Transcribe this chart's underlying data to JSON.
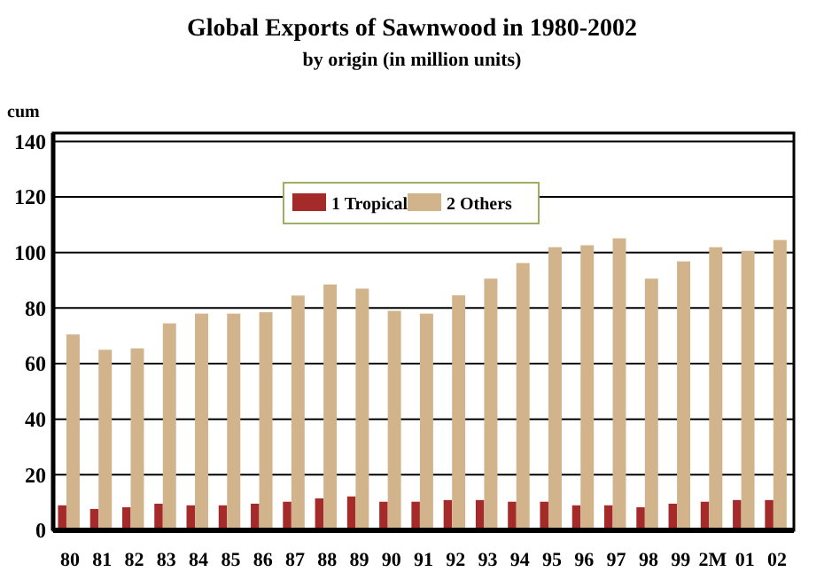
{
  "chart_data": {
    "type": "bar",
    "title": "Global Exports of Sawnwood in 1980-2002",
    "subtitle": "by origin (in million units)",
    "ylabel": "cum",
    "categories": [
      "80",
      "81",
      "82",
      "83",
      "84",
      "85",
      "86",
      "87",
      "88",
      "89",
      "90",
      "91",
      "92",
      "93",
      "94",
      "95",
      "96",
      "97",
      "98",
      "99",
      "2M",
      "01",
      "02"
    ],
    "series": [
      {
        "name": "1 Tropical",
        "color": "#a52a2a",
        "values": [
          9,
          7.7,
          8.3,
          9.6,
          9,
          9,
          9.6,
          10.3,
          11.5,
          12.2,
          10.3,
          10.3,
          10.9,
          10.9,
          10.3,
          10.3,
          9,
          9,
          8.3,
          9.6,
          10.3,
          10.9,
          10.9
        ]
      },
      {
        "name": "2 Others",
        "color": "#d2b48c",
        "values": [
          70.5,
          65,
          65.5,
          74.5,
          78,
          78,
          78.5,
          84.5,
          88.5,
          87,
          79,
          78,
          84.6,
          90.6,
          96.2,
          101.9,
          102.6,
          105.1,
          90.6,
          96.8,
          101.9,
          100.6,
          104.5
        ]
      }
    ],
    "ylim": [
      0,
      143
    ],
    "yticks": [
      0,
      20,
      40,
      60,
      80,
      100,
      120,
      140
    ],
    "grid": "y",
    "legend": "top"
  }
}
